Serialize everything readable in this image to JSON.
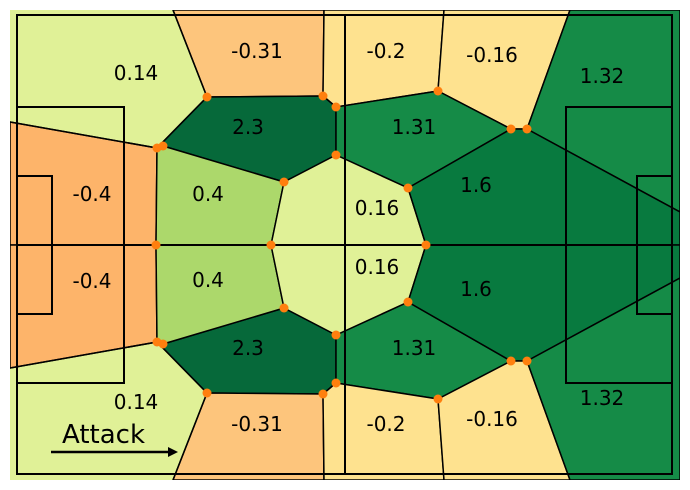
{
  "diagram": {
    "attack_label": "Attack",
    "colors": {
      "light_yellow_green": "#e0f197",
      "light_green": "#acd86b",
      "light_orange": "#fdc57c",
      "orange": "#fdb46a",
      "pale_yellow": "#fee28f",
      "mid_green": "#158b47",
      "dark_green": "#087a3f",
      "darkest_green": "#06693a",
      "node": "#ff7f0e"
    },
    "zones": [
      {
        "id": "top-left-wing",
        "value": "0.14"
      },
      {
        "id": "top-left-half-space",
        "value": "-0.31"
      },
      {
        "id": "top-center-half-space",
        "value": "-0.2"
      },
      {
        "id": "top-right-half-space",
        "value": "-0.16"
      },
      {
        "id": "top-right-wing",
        "value": "1.32"
      },
      {
        "id": "inner-top-left",
        "value": "2.3"
      },
      {
        "id": "inner-top-right",
        "value": "1.31"
      },
      {
        "id": "left-box-top",
        "value": "-0.4"
      },
      {
        "id": "left-center-top",
        "value": "0.4"
      },
      {
        "id": "center-top",
        "value": "0.16"
      },
      {
        "id": "right-center-top",
        "value": "1.6"
      },
      {
        "id": "left-box-bottom",
        "value": "-0.4"
      },
      {
        "id": "left-center-bottom",
        "value": "0.4"
      },
      {
        "id": "center-bottom",
        "value": "0.16"
      },
      {
        "id": "right-center-bottom",
        "value": "1.6"
      },
      {
        "id": "inner-bottom-left",
        "value": "2.3"
      },
      {
        "id": "inner-bottom-right",
        "value": "1.31"
      },
      {
        "id": "bottom-left-wing",
        "value": "0.14"
      },
      {
        "id": "bottom-left-half-space",
        "value": "-0.31"
      },
      {
        "id": "bottom-center-half-space",
        "value": "-0.2"
      },
      {
        "id": "bottom-right-half-space",
        "value": "-0.16"
      },
      {
        "id": "bottom-right-wing",
        "value": "1.32"
      }
    ]
  }
}
